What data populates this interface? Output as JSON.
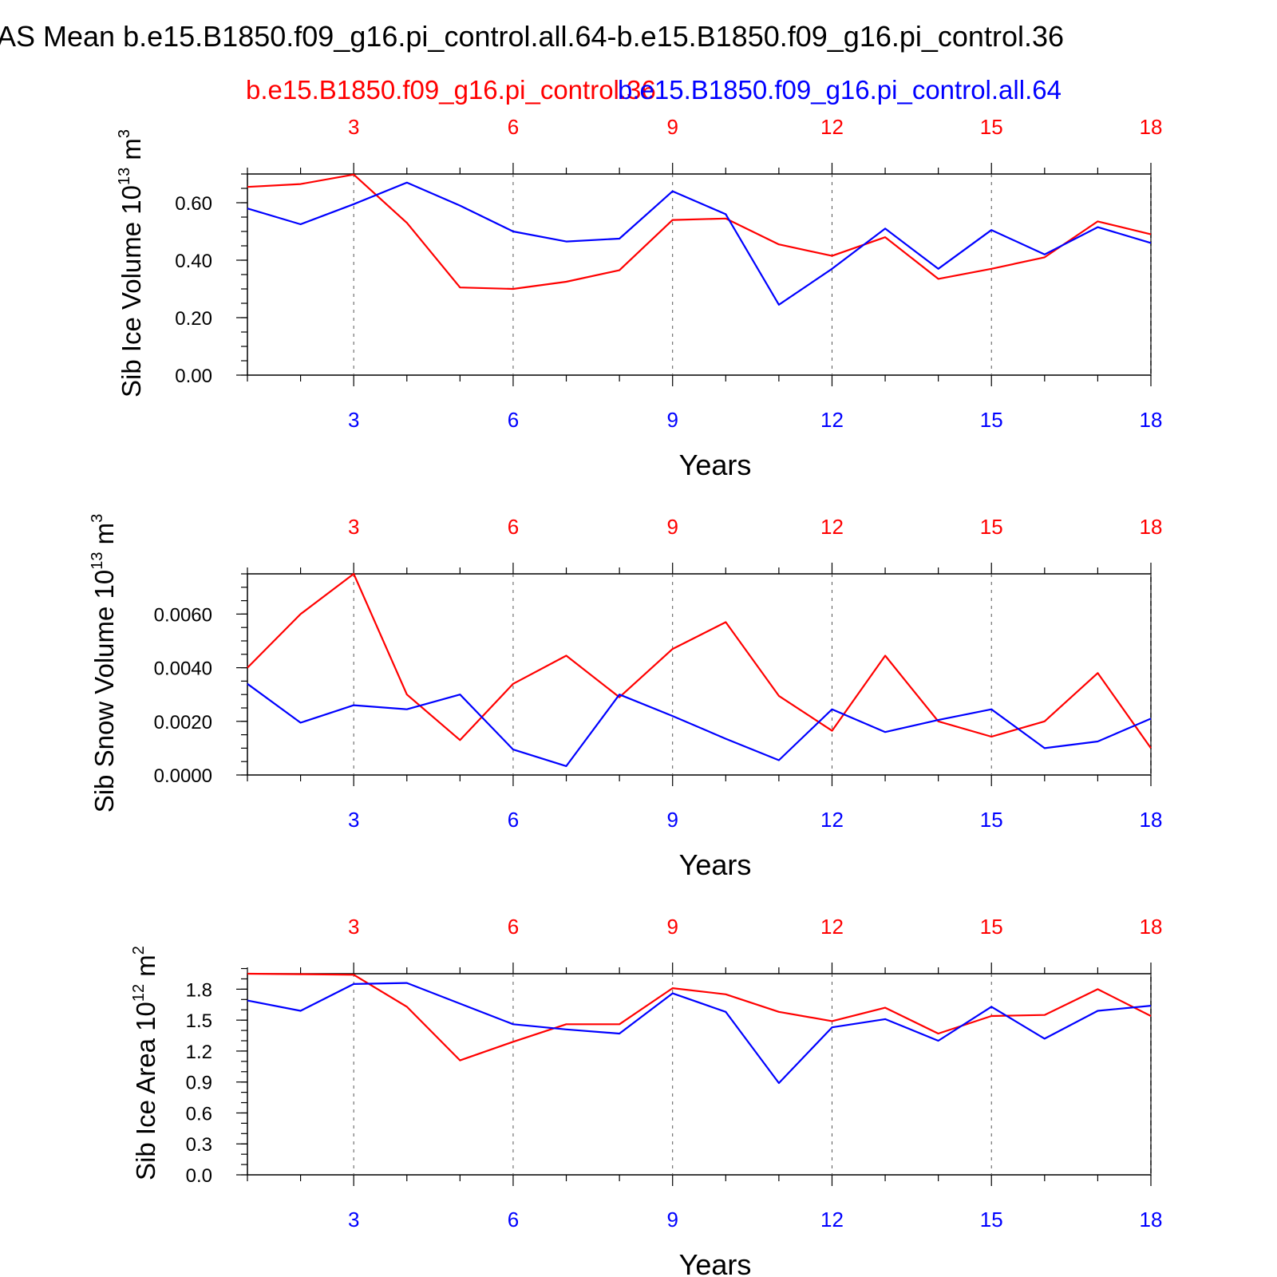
{
  "title": "AS Mean b.e15.B1850.f09_g16.pi_control.all.64-b.e15.B1850.f09_g16.pi_control.36",
  "subtitle_left": "b.e15.B1850.f09_g16.pi_control.36",
  "subtitle_right": "b.e15.B1850.f09_g16.pi_control.all.64",
  "colors": {
    "case_red": "#ff0000",
    "case_blue": "#0000ff",
    "axis": "#000000"
  },
  "chart_data": [
    {
      "type": "line",
      "ylabel_main": "Sib Ice Volume 10",
      "ylabel_exp": "13",
      "ylabel_unit": "m",
      "ylabel_unit_exp": "3",
      "xlabel": "Years",
      "xlim": [
        1,
        18
      ],
      "ylim": [
        0,
        0.7
      ],
      "yticks": [
        0.0,
        0.2,
        0.4,
        0.6
      ],
      "ytick_labels": [
        "0.00",
        "0.20",
        "0.40",
        "0.60"
      ],
      "yminor": 0.05,
      "xticks": [
        3,
        6,
        9,
        12,
        15,
        18
      ],
      "xtick_labels": [
        "3",
        "6",
        "9",
        "12",
        "15",
        "18"
      ],
      "x": [
        1,
        2,
        3,
        4,
        5,
        6,
        7,
        8,
        9,
        10,
        11,
        12,
        13,
        14,
        15,
        16,
        17,
        18
      ],
      "series": [
        {
          "name": "b.e15.B1850.f09_g16.pi_control.36",
          "color": "#ff0000",
          "values": [
            0.655,
            0.665,
            0.698,
            0.53,
            0.305,
            0.3,
            0.325,
            0.365,
            0.54,
            0.545,
            0.455,
            0.415,
            0.48,
            0.335,
            0.37,
            0.41,
            0.535,
            0.49
          ]
        },
        {
          "name": "b.e15.B1850.f09_g16.pi_control.all.64",
          "color": "#0000ff",
          "values": [
            0.58,
            0.525,
            0.595,
            0.67,
            0.59,
            0.5,
            0.465,
            0.475,
            0.64,
            0.56,
            0.245,
            0.37,
            0.51,
            0.37,
            0.505,
            0.42,
            0.515,
            0.46
          ]
        }
      ]
    },
    {
      "type": "line",
      "ylabel_main": "Sib Snow Volume 10",
      "ylabel_exp": "13",
      "ylabel_unit": "m",
      "ylabel_unit_exp": "3",
      "xlabel": "Years",
      "xlim": [
        1,
        18
      ],
      "ylim": [
        0,
        0.0075
      ],
      "yticks": [
        0.0,
        0.002,
        0.004,
        0.006
      ],
      "ytick_labels": [
        "0.0000",
        "0.0020",
        "0.0040",
        "0.0060"
      ],
      "yminor": 0.0005,
      "xticks": [
        3,
        6,
        9,
        12,
        15,
        18
      ],
      "xtick_labels": [
        "3",
        "6",
        "9",
        "12",
        "15",
        "18"
      ],
      "x": [
        1,
        2,
        3,
        4,
        5,
        6,
        7,
        8,
        9,
        10,
        11,
        12,
        13,
        14,
        15,
        16,
        17,
        18
      ],
      "series": [
        {
          "name": "b.e15.B1850.f09_g16.pi_control.36",
          "color": "#ff0000",
          "values": [
            0.004,
            0.006,
            0.0075,
            0.003,
            0.0013,
            0.0034,
            0.00445,
            0.0029,
            0.0047,
            0.0057,
            0.00295,
            0.00165,
            0.00445,
            0.002,
            0.00143,
            0.002,
            0.0038,
            0.001
          ]
        },
        {
          "name": "b.e15.B1850.f09_g16.pi_control.all.64",
          "color": "#0000ff",
          "values": [
            0.0034,
            0.00195,
            0.0026,
            0.00245,
            0.003,
            0.00095,
            0.00033,
            0.003,
            0.0022,
            0.00135,
            0.00055,
            0.00245,
            0.0016,
            0.00205,
            0.00245,
            0.001,
            0.00125,
            0.0021
          ]
        }
      ]
    },
    {
      "type": "line",
      "ylabel_main": "Sib Ice Area 10",
      "ylabel_exp": "12",
      "ylabel_unit": "m",
      "ylabel_unit_exp": "2",
      "xlabel": "Years",
      "xlim": [
        1,
        18
      ],
      "ylim": [
        0,
        1.95
      ],
      "yticks": [
        0.0,
        0.3,
        0.6,
        0.9,
        1.2,
        1.5,
        1.8
      ],
      "ytick_labels": [
        "0.0",
        "0.3",
        "0.6",
        "0.9",
        "1.2",
        "1.5",
        "1.8"
      ],
      "yminor": 0.1,
      "xticks": [
        3,
        6,
        9,
        12,
        15,
        18
      ],
      "xtick_labels": [
        "3",
        "6",
        "9",
        "12",
        "15",
        "18"
      ],
      "x": [
        1,
        2,
        3,
        4,
        5,
        6,
        7,
        8,
        9,
        10,
        11,
        12,
        13,
        14,
        15,
        16,
        17,
        18
      ],
      "series": [
        {
          "name": "b.e15.B1850.f09_g16.pi_control.36",
          "color": "#ff0000",
          "values": [
            1.95,
            1.945,
            1.94,
            1.63,
            1.11,
            1.29,
            1.46,
            1.46,
            1.81,
            1.75,
            1.58,
            1.49,
            1.62,
            1.37,
            1.54,
            1.55,
            1.8,
            1.54
          ]
        },
        {
          "name": "b.e15.B1850.f09_g16.pi_control.all.64",
          "color": "#0000ff",
          "values": [
            1.69,
            1.59,
            1.85,
            1.86,
            1.66,
            1.46,
            1.41,
            1.37,
            1.76,
            1.58,
            0.89,
            1.43,
            1.51,
            1.3,
            1.63,
            1.32,
            1.59,
            1.64
          ]
        }
      ]
    }
  ]
}
